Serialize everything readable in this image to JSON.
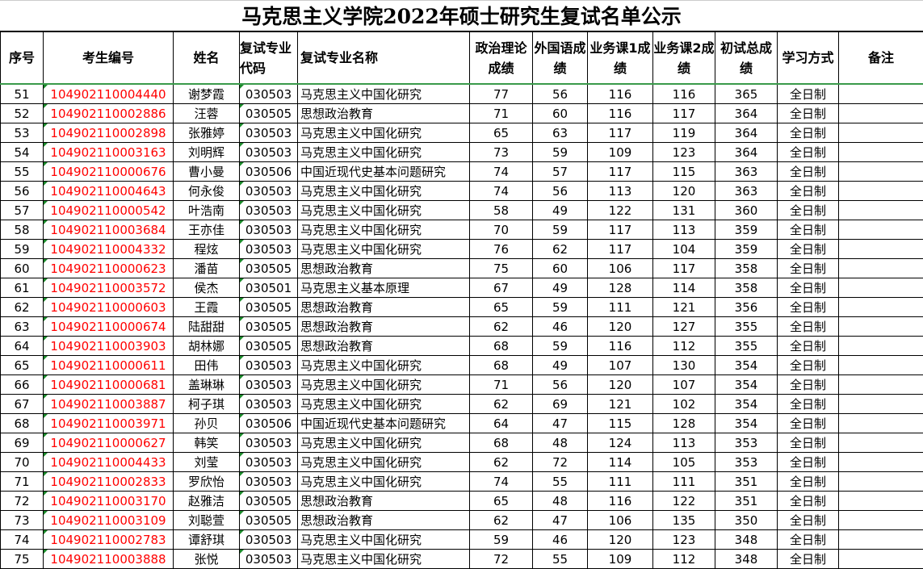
{
  "title": "马克思主义学院2022年硕士研究生复试名单公示",
  "columns": [
    "序号",
    "考生编号",
    "姓名",
    "复试专业代码",
    "复试专业名称",
    "政治理论成绩",
    "外国语成绩",
    "业务课1成绩",
    "业务课2成绩",
    "初试总成绩",
    "学习方式",
    "备注"
  ],
  "rows": [
    [
      "51",
      "104902110004440",
      "谢梦霞",
      "030503",
      "马克思主义中国化研究",
      "77",
      "56",
      "116",
      "116",
      "365",
      "全日制",
      ""
    ],
    [
      "52",
      "104902110002886",
      "汪蓉",
      "030505",
      "思想政治教育",
      "71",
      "60",
      "116",
      "117",
      "364",
      "全日制",
      ""
    ],
    [
      "53",
      "104902110002898",
      "张雅婷",
      "030503",
      "马克思主义中国化研究",
      "65",
      "63",
      "117",
      "119",
      "364",
      "全日制",
      ""
    ],
    [
      "54",
      "104902110003163",
      "刘明辉",
      "030503",
      "马克思主义中国化研究",
      "73",
      "59",
      "109",
      "123",
      "364",
      "全日制",
      ""
    ],
    [
      "55",
      "104902110000676",
      "曹小曼",
      "030506",
      "中国近现代史基本问题研究",
      "74",
      "57",
      "117",
      "115",
      "363",
      "全日制",
      ""
    ],
    [
      "56",
      "104902110004643",
      "何永俊",
      "030503",
      "马克思主义中国化研究",
      "74",
      "56",
      "113",
      "120",
      "363",
      "全日制",
      ""
    ],
    [
      "57",
      "104902110000542",
      "叶浩南",
      "030503",
      "马克思主义中国化研究",
      "58",
      "49",
      "122",
      "131",
      "360",
      "全日制",
      ""
    ],
    [
      "58",
      "104902110003684",
      "王亦佳",
      "030503",
      "马克思主义中国化研究",
      "70",
      "59",
      "117",
      "113",
      "359",
      "全日制",
      ""
    ],
    [
      "59",
      "104902110004332",
      "程炫",
      "030503",
      "马克思主义中国化研究",
      "76",
      "62",
      "117",
      "104",
      "359",
      "全日制",
      ""
    ],
    [
      "60",
      "104902110000623",
      "潘苗",
      "030505",
      "思想政治教育",
      "75",
      "60",
      "106",
      "117",
      "358",
      "全日制",
      ""
    ],
    [
      "61",
      "104902110003572",
      "侯杰",
      "030501",
      "马克思主义基本原理",
      "67",
      "49",
      "128",
      "114",
      "358",
      "全日制",
      ""
    ],
    [
      "62",
      "104902110000603",
      "王霞",
      "030505",
      "思想政治教育",
      "65",
      "59",
      "111",
      "121",
      "356",
      "全日制",
      ""
    ],
    [
      "63",
      "104902110000674",
      "陆甜甜",
      "030505",
      "思想政治教育",
      "62",
      "46",
      "120",
      "127",
      "355",
      "全日制",
      ""
    ],
    [
      "64",
      "104902110003903",
      "胡林娜",
      "030505",
      "思想政治教育",
      "68",
      "59",
      "116",
      "112",
      "355",
      "全日制",
      ""
    ],
    [
      "65",
      "104902110000611",
      "田伟",
      "030503",
      "马克思主义中国化研究",
      "68",
      "49",
      "107",
      "130",
      "354",
      "全日制",
      ""
    ],
    [
      "66",
      "104902110000681",
      "盖琳琳",
      "030503",
      "马克思主义中国化研究",
      "71",
      "56",
      "120",
      "107",
      "354",
      "全日制",
      ""
    ],
    [
      "67",
      "104902110003887",
      "柯子琪",
      "030503",
      "马克思主义中国化研究",
      "62",
      "69",
      "121",
      "102",
      "354",
      "全日制",
      ""
    ],
    [
      "68",
      "104902110003971",
      "孙贝",
      "030506",
      "中国近现代史基本问题研究",
      "64",
      "47",
      "115",
      "128",
      "354",
      "全日制",
      ""
    ],
    [
      "69",
      "104902110000627",
      "韩笑",
      "030503",
      "马克思主义中国化研究",
      "68",
      "48",
      "124",
      "113",
      "353",
      "全日制",
      ""
    ],
    [
      "70",
      "104902110004433",
      "刘莹",
      "030503",
      "马克思主义中国化研究",
      "62",
      "72",
      "114",
      "105",
      "353",
      "全日制",
      ""
    ],
    [
      "71",
      "104902110002833",
      "罗欣怡",
      "030503",
      "马克思主义中国化研究",
      "74",
      "55",
      "111",
      "111",
      "351",
      "全日制",
      ""
    ],
    [
      "72",
      "104902110003170",
      "赵雅洁",
      "030505",
      "思想政治教育",
      "65",
      "48",
      "116",
      "122",
      "351",
      "全日制",
      ""
    ],
    [
      "73",
      "104902110003109",
      "刘聪萱",
      "030505",
      "思想政治教育",
      "62",
      "47",
      "106",
      "135",
      "350",
      "全日制",
      ""
    ],
    [
      "74",
      "104902110002783",
      "谭舒琪",
      "030503",
      "马克思主义中国化研究",
      "59",
      "46",
      "120",
      "123",
      "348",
      "全日制",
      ""
    ],
    [
      "75",
      "104902110003888",
      "张悦",
      "030503",
      "马克思主义中国化研究",
      "72",
      "55",
      "109",
      "112",
      "348",
      "全日制",
      ""
    ]
  ]
}
